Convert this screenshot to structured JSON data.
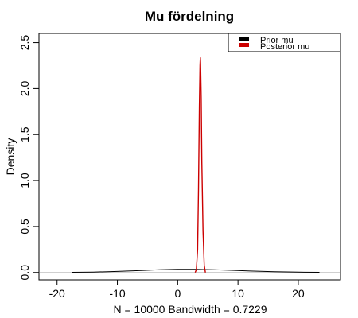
{
  "chart_data": {
    "type": "line",
    "title": "Mu fördelning",
    "xlabel": "N = 10000   Bandwidth = 0.7229",
    "ylabel": "Density",
    "xlim": [
      -23,
      27
    ],
    "ylim": [
      -0.08,
      2.6
    ],
    "xticks": [
      -20,
      -10,
      0,
      10,
      20
    ],
    "xtick_labels": [
      "-20",
      "-10",
      "0",
      "10",
      "20"
    ],
    "yticks": [
      0.0,
      0.5,
      1.0,
      1.5,
      2.0,
      2.5
    ],
    "ytick_labels": [
      "0.0",
      "0.5",
      "1.0",
      "1.5",
      "2.0",
      "2.5"
    ],
    "zero_line": true,
    "legend_placement": "top-right",
    "series": [
      {
        "name": "Prior mu",
        "color": "#000000",
        "x": [
          -17.5,
          -14,
          -10,
          -6,
          -3,
          0,
          3,
          6,
          9,
          12,
          16,
          20,
          23.5
        ],
        "y": [
          0.002,
          0.005,
          0.012,
          0.022,
          0.03,
          0.034,
          0.034,
          0.03,
          0.024,
          0.016,
          0.009,
          0.004,
          0.002
        ]
      },
      {
        "name": "Posterior mu",
        "color": "#cc0000",
        "x": [
          2.9,
          3.1,
          3.3,
          3.45,
          3.6,
          3.7,
          3.75,
          3.8,
          3.9,
          4.0,
          4.2,
          4.4,
          4.6
        ],
        "y": [
          0.0,
          0.03,
          0.25,
          0.9,
          1.8,
          2.25,
          2.34,
          2.28,
          1.9,
          1.2,
          0.45,
          0.08,
          0.0
        ]
      }
    ]
  }
}
